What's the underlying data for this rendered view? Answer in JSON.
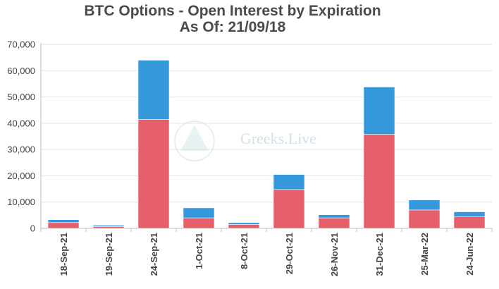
{
  "chart_data": {
    "type": "bar",
    "stacked": true,
    "title": "BTC Options - Open Interest by Expiration",
    "subtitle": "As Of: 21/09/18",
    "categories": [
      "18-Sep-21",
      "19-Sep-21",
      "24-Sep-21",
      "1-Oct-21",
      "8-Oct-21",
      "29-Oct-21",
      "26-Nov-21",
      "31-Dec-21",
      "25-Mar-22",
      "24-Jun-22"
    ],
    "series": [
      {
        "color": "#e55f6a",
        "values": [
          2200,
          700,
          41500,
          4000,
          1500,
          14800,
          4000,
          35800,
          7000,
          4500
        ]
      },
      {
        "color": "#3498db",
        "values": [
          1100,
          500,
          22500,
          3800,
          700,
          5700,
          1200,
          18000,
          3800,
          1800
        ]
      }
    ],
    "yticks": [
      "0",
      "10,000",
      "20,000",
      "30,000",
      "40,000",
      "50,000",
      "60,000",
      "70,000"
    ],
    "ylim": [
      0,
      70000
    ],
    "grid": true,
    "watermark": "Greeks.Live"
  }
}
